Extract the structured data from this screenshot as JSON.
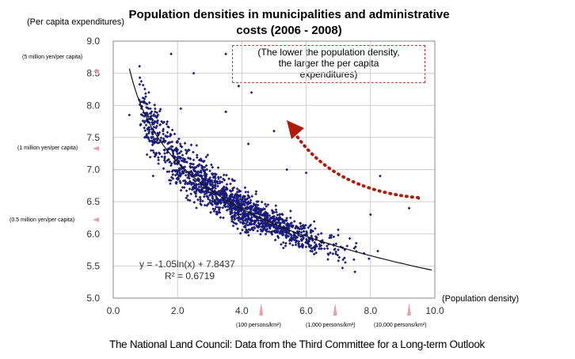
{
  "chart_data": {
    "type": "scatter",
    "title": "Population densities in municipalities and administrative costs (2006 - 2008)",
    "ylabel": "(Per capita expenditures)",
    "xlabel": "(Population density)",
    "xlim": [
      0.0,
      10.0
    ],
    "ylim": [
      5.0,
      9.0
    ],
    "x_ticks": [
      "0.0",
      "2.0",
      "4.0",
      "6.0",
      "8.0",
      "10.0"
    ],
    "y_ticks": [
      "5.0",
      "5.5",
      "6.0",
      "6.5",
      "7.0",
      "7.5",
      "8.0",
      "8.5",
      "9.0"
    ],
    "trendline": {
      "equation": "y = -1.05ln(x) + 7.8437",
      "r_squared": "R² = 0.6719",
      "a": -1.05,
      "b": 7.8437,
      "x_from": 0.5,
      "x_to": 9.9
    },
    "y_reference_labels": [
      {
        "text": "(5 million yen/per capita)",
        "y": 8.53
      },
      {
        "text": "(1 million yen/per capita)",
        "y": 7.33
      },
      {
        "text": "(0.5 million yen/per capita)",
        "y": 6.22
      }
    ],
    "x_reference_labels": [
      {
        "text": "(100 persons/km²)",
        "x": 4.6
      },
      {
        "text": "(1,000 persons/km²)",
        "x": 6.9
      },
      {
        "text": "(10,000 persons/km²)",
        "x": 9.2
      }
    ],
    "outliers": [
      [
        0.5,
        7.85
      ],
      [
        1.1,
        7.95
      ],
      [
        1.3,
        7.9
      ],
      [
        1.8,
        8.8
      ],
      [
        2.1,
        7.95
      ],
      [
        2.5,
        8.5
      ],
      [
        3.5,
        8.8
      ],
      [
        3.9,
        8.3
      ],
      [
        4.3,
        8.2
      ],
      [
        5.0,
        7.6
      ],
      [
        3.5,
        7.9
      ],
      [
        4.2,
        7.4
      ],
      [
        5.4,
        7.0
      ],
      [
        6.0,
        6.95
      ],
      [
        8.3,
        6.9
      ],
      [
        9.2,
        6.4
      ],
      [
        9.5,
        6.55
      ],
      [
        8.0,
        6.3
      ]
    ],
    "n_points": 1600
  },
  "annotation": {
    "lines": [
      "(The lower the population density,",
      "the larger the per capita",
      "expenditures)"
    ],
    "arrow_color": "#b01c0c",
    "box_color": "#c0392b"
  },
  "point_color": "#1a1a78",
  "marker_color": "#e8a0a8",
  "source": "The National Land Council: Data from the Third Committee for a Long-term Outlook"
}
